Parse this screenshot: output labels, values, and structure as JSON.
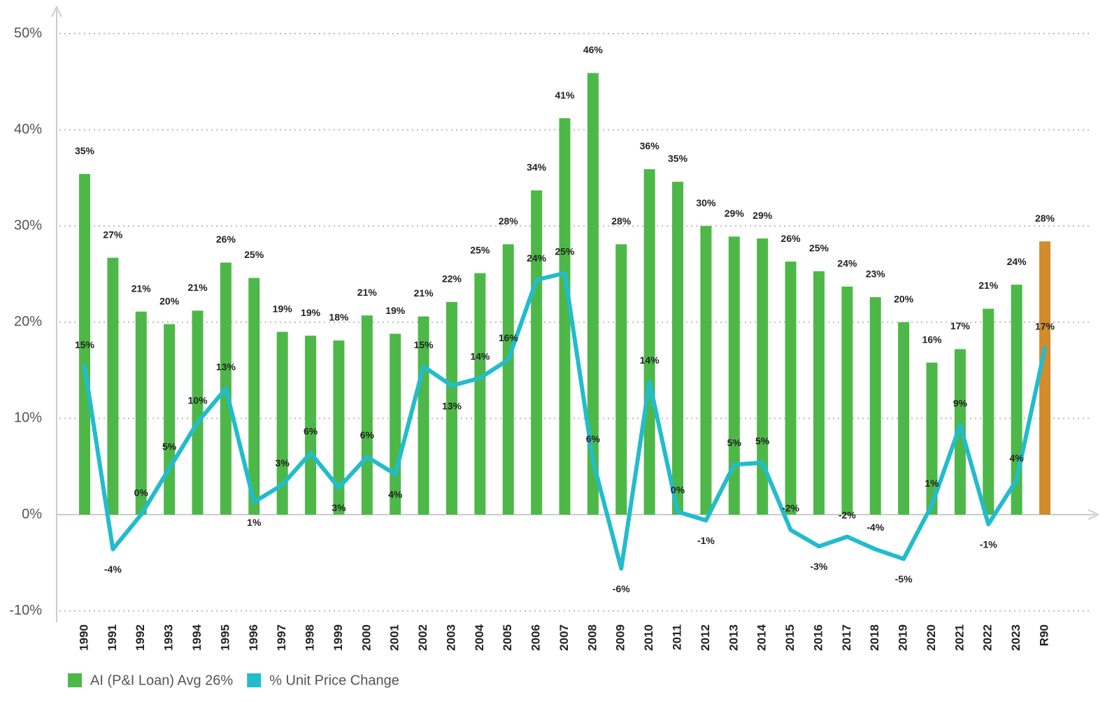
{
  "chart_data": {
    "type": "combo",
    "categories": [
      "1990",
      "1991",
      "1992",
      "1993",
      "1994",
      "1995",
      "1996",
      "1997",
      "1998",
      "1999",
      "2000",
      "2001",
      "2002",
      "2003",
      "2004",
      "2005",
      "2006",
      "2007",
      "2008",
      "2009",
      "2010",
      "2011",
      "2012",
      "2013",
      "2014",
      "2015",
      "2016",
      "2017",
      "2018",
      "2019",
      "2020",
      "2021",
      "2022",
      "2023",
      "R90"
    ],
    "series": [
      {
        "name": "AI (P&I Loan) Avg 26%",
        "type": "bar",
        "color": "#4db848",
        "colors": [
          "#4db848",
          "#4db848",
          "#4db848",
          "#4db848",
          "#4db848",
          "#4db848",
          "#4db848",
          "#4db848",
          "#4db848",
          "#4db848",
          "#4db848",
          "#4db848",
          "#4db848",
          "#4db848",
          "#4db848",
          "#4db848",
          "#4db848",
          "#4db848",
          "#4db848",
          "#4db848",
          "#4db848",
          "#4db848",
          "#4db848",
          "#4db848",
          "#4db848",
          "#4db848",
          "#4db848",
          "#4db848",
          "#4db848",
          "#4db848",
          "#4db848",
          "#4db848",
          "#4db848",
          "#4db848",
          "#d38b2c"
        ],
        "values": [
          35.4,
          26.7,
          21.1,
          19.8,
          21.2,
          26.2,
          24.6,
          19.0,
          18.6,
          18.1,
          20.7,
          18.8,
          20.6,
          22.1,
          25.1,
          28.1,
          33.7,
          41.2,
          45.9,
          28.1,
          35.9,
          34.6,
          30.0,
          28.9,
          28.7,
          26.3,
          25.3,
          23.7,
          22.6,
          20.0,
          15.8,
          17.2,
          21.4,
          23.9,
          28.4
        ],
        "value_labels": [
          "35%",
          "27%",
          "21%",
          "20%",
          "21%",
          "26%",
          "25%",
          "19%",
          "19%",
          "18%",
          "21%",
          "19%",
          "21%",
          "22%",
          "25%",
          "28%",
          "34%",
          "41%",
          "46%",
          "28%",
          "36%",
          "35%",
          "30%",
          "29%",
          "29%",
          "26%",
          "25%",
          "24%",
          "23%",
          "20%",
          "16%",
          "17%",
          "21%",
          "24%",
          "28%"
        ]
      },
      {
        "name": "% Unit Price Change",
        "type": "line",
        "color": "#22bccc",
        "values": [
          15.4,
          -3.6,
          0,
          4.8,
          9.6,
          13.1,
          1.3,
          3.1,
          6.4,
          2.8,
          6.0,
          4.2,
          15.4,
          13.4,
          14.2,
          16.1,
          24.4,
          25.1,
          5.6,
          -5.6,
          13.8,
          0.3,
          -0.6,
          5.2,
          5.4,
          -1.6,
          -3.3,
          -2.3,
          -3.6,
          -4.6,
          1.0,
          9.3,
          -1.0,
          3.6,
          17.3
        ],
        "value_labels": [
          "15%",
          "-4%",
          "0%",
          "5%",
          "10%",
          "13%",
          "1%",
          "3%",
          "6%",
          "3%",
          "6%",
          "4%",
          "15%",
          "13%",
          "14%",
          "16%",
          "24%",
          "25%",
          "6%",
          "-6%",
          "14%",
          "0%",
          "-1%",
          "5%",
          "5%",
          "-2%",
          "-3%",
          "-2%",
          "-4%",
          "-5%",
          "1%",
          "9%",
          "-1%",
          "4%",
          "17%"
        ]
      }
    ],
    "ylim": [
      -11,
      52
    ],
    "yticks": [
      {
        "value": -10,
        "label": "-10%"
      },
      {
        "value": 0,
        "label": "0%"
      },
      {
        "value": 10,
        "label": "10%"
      },
      {
        "value": 20,
        "label": "20%"
      },
      {
        "value": 30,
        "label": "30%"
      },
      {
        "value": 40,
        "label": "40%"
      },
      {
        "value": 50,
        "label": "50%"
      }
    ],
    "grid": true
  }
}
